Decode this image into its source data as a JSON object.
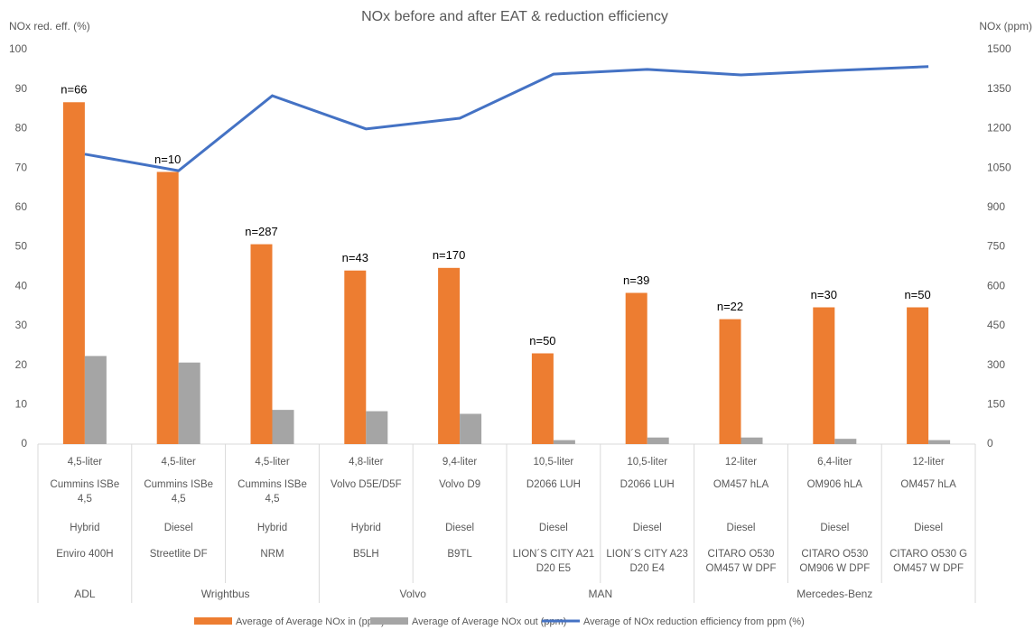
{
  "chart_data": {
    "type": "bar_line",
    "title": "NOx before and after EAT & reduction efficiency",
    "y_label": "NOx red. eff. (%)",
    "y2_label": "NOx (ppm)",
    "categories": [
      [
        "4,5-liter",
        "Cummins ISBe 4,5",
        "Hybrid",
        "Enviro 400H"
      ],
      [
        "4,5-liter",
        "Cummins ISBe 4,5",
        "Diesel",
        "Streetlite DF"
      ],
      [
        "4,5-liter",
        "Cummins ISBe 4,5",
        "Hybrid",
        "NRM"
      ],
      [
        "4,8-liter",
        "Volvo D5E/D5F",
        "Hybrid",
        "B5LH"
      ],
      [
        "9,4-liter",
        "Volvo D9",
        "Diesel",
        "B9TL"
      ],
      [
        "10,5-liter",
        "D2066 LUH",
        "Diesel",
        "LION´S CITY A21 D20 E5"
      ],
      [
        "10,5-liter",
        "D2066 LUH",
        "Diesel",
        "LION´S CITY A23 D20 E4"
      ],
      [
        "12-liter",
        "OM457 hLA",
        "Diesel",
        "CITARO O530 OM457 W DPF"
      ],
      [
        "6,4-liter",
        "OM906 hLA",
        "Diesel",
        "CITARO O530 OM906 W DPF"
      ],
      [
        "12-liter",
        "OM457 hLA",
        "Diesel",
        "CITARO O530 G OM457 W DPF"
      ]
    ],
    "groups": [
      {
        "name": "ADL",
        "size": 1
      },
      {
        "name": "Wrightbus",
        "size": 2
      },
      {
        "name": "Volvo",
        "size": 2
      },
      {
        "name": "MAN",
        "size": 2
      },
      {
        "name": "Mercedes-Benz",
        "size": 3
      }
    ],
    "bar_labels": [
      "n=66",
      "n=10",
      "n=287",
      "n=43",
      "n=170",
      "n=50",
      "n=39",
      "n=22",
      "n=30",
      "n=50"
    ],
    "series": [
      {
        "name": "Average of Average NOx in (ppm)",
        "type": "bar",
        "axis": "y2",
        "color": "#ed7d31",
        "values": [
          1300,
          1035,
          760,
          660,
          670,
          345,
          575,
          475,
          520,
          520
        ]
      },
      {
        "name": "Average of Average NOx out (ppm)",
        "type": "bar",
        "axis": "y2",
        "color": "#a5a5a5",
        "values": [
          335,
          310,
          130,
          125,
          115,
          15,
          25,
          25,
          20,
          15
        ]
      },
      {
        "name": "Average of NOx reduction efficiency from ppm (%)",
        "type": "line",
        "color": "#4472c4",
        "values": [
          73.5,
          69.3,
          88.3,
          79.9,
          82.6,
          93.8,
          95.0,
          93.6,
          94.7,
          95.7
        ]
      }
    ],
    "ylim": [
      0,
      100
    ],
    "yticks": [
      0,
      10,
      20,
      30,
      40,
      50,
      60,
      70,
      80,
      90,
      100
    ],
    "y2lim": [
      0,
      1500
    ],
    "y2ticks": [
      0,
      150,
      300,
      450,
      600,
      750,
      900,
      1050,
      1200,
      1350,
      1500
    ],
    "grid": false,
    "legend": "bottom"
  }
}
